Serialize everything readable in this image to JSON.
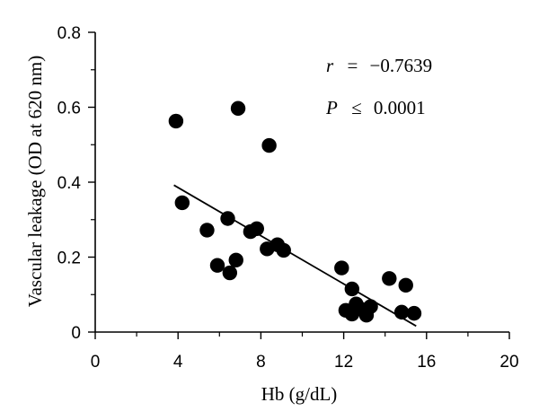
{
  "chart_data": {
    "type": "scatter",
    "xlabel": "Hb (g/dL)",
    "ylabel": "Vascular leakage (OD at 620 nm)",
    "xlim": [
      0,
      20
    ],
    "ylim": [
      0,
      0.8
    ],
    "xticks": [
      0,
      4,
      8,
      12,
      16,
      20
    ],
    "yticks": [
      0,
      0.2,
      0.4,
      0.6,
      0.8
    ],
    "xtick_labels": [
      "0",
      "4",
      "8",
      "12",
      "16",
      "20"
    ],
    "ytick_labels": [
      "0",
      "0.2",
      "0.4",
      "0.6",
      "0.8"
    ],
    "grid": false,
    "points": [
      {
        "x": 3.9,
        "y": 0.563
      },
      {
        "x": 4.2,
        "y": 0.345
      },
      {
        "x": 5.4,
        "y": 0.272
      },
      {
        "x": 5.9,
        "y": 0.178
      },
      {
        "x": 6.4,
        "y": 0.303
      },
      {
        "x": 6.5,
        "y": 0.158
      },
      {
        "x": 6.8,
        "y": 0.192
      },
      {
        "x": 6.9,
        "y": 0.597
      },
      {
        "x": 7.5,
        "y": 0.268
      },
      {
        "x": 7.8,
        "y": 0.276
      },
      {
        "x": 8.3,
        "y": 0.222
      },
      {
        "x": 8.4,
        "y": 0.498
      },
      {
        "x": 8.8,
        "y": 0.233
      },
      {
        "x": 9.1,
        "y": 0.218
      },
      {
        "x": 11.9,
        "y": 0.171
      },
      {
        "x": 12.1,
        "y": 0.058
      },
      {
        "x": 12.4,
        "y": 0.115
      },
      {
        "x": 12.4,
        "y": 0.048
      },
      {
        "x": 12.6,
        "y": 0.075
      },
      {
        "x": 12.8,
        "y": 0.062
      },
      {
        "x": 13.1,
        "y": 0.045
      },
      {
        "x": 13.3,
        "y": 0.068
      },
      {
        "x": 14.2,
        "y": 0.143
      },
      {
        "x": 14.8,
        "y": 0.053
      },
      {
        "x": 15.0,
        "y": 0.125
      },
      {
        "x": 15.4,
        "y": 0.05
      }
    ],
    "regression_line": {
      "x": [
        3.8,
        15.5
      ],
      "y": [
        0.392,
        0.016
      ]
    },
    "annotations": [
      {
        "name": "r-value",
        "label": "r",
        "relation": "=",
        "value": "−0.7639"
      },
      {
        "name": "p-value",
        "label": "P",
        "relation": "≤",
        "value": "0.0001"
      }
    ]
  },
  "colors": {
    "marker": "#000000",
    "line": "#000000",
    "axis": "#000000"
  }
}
